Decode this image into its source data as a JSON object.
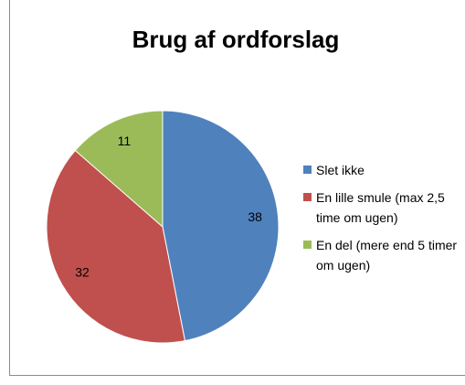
{
  "chart_data": {
    "type": "pie",
    "title": "Brug af ordforslag",
    "categories": [
      "Slet ikke",
      "En lille smule (max 2,5 time om ugen)",
      "En del (mere end 5 timer om ugen)"
    ],
    "values": [
      38,
      32,
      11
    ],
    "colors": [
      "#4f81bd",
      "#c0504d",
      "#9bbb59"
    ],
    "legend": "right"
  }
}
